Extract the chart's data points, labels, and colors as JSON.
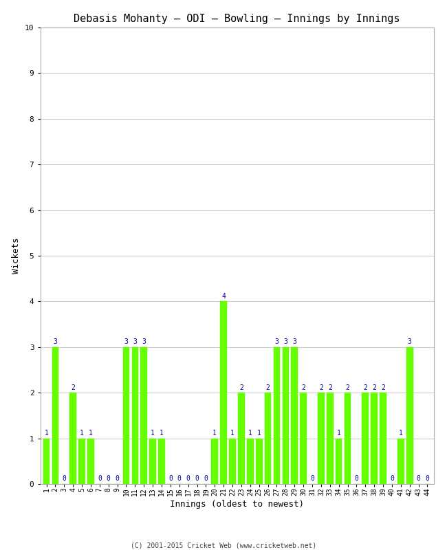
{
  "title": "Debasis Mohanty – ODI – Bowling – Innings by Innings",
  "xlabel": "Innings (oldest to newest)",
  "ylabel": "Wickets",
  "innings": [
    1,
    2,
    3,
    4,
    5,
    6,
    7,
    8,
    9,
    10,
    11,
    12,
    13,
    14,
    15,
    16,
    17,
    18,
    19,
    20,
    21,
    22,
    23,
    24,
    25,
    26,
    27,
    28,
    29,
    30,
    31,
    32,
    33,
    34,
    35,
    36,
    37,
    38,
    39,
    40,
    41,
    42,
    43,
    44
  ],
  "wickets": [
    1,
    3,
    0,
    2,
    1,
    1,
    0,
    0,
    0,
    3,
    3,
    3,
    1,
    1,
    0,
    0,
    0,
    0,
    0,
    1,
    4,
    1,
    2,
    1,
    1,
    2,
    3,
    3,
    3,
    2,
    0,
    2,
    2,
    1,
    2,
    0,
    2,
    2,
    2,
    0,
    1,
    3,
    0,
    0
  ],
  "bar_color": "#66ff00",
  "bar_edge_color": "#55ee00",
  "label_color": "#000099",
  "background_color": "#ffffff",
  "grid_color": "#cccccc",
  "ylim": [
    0,
    10
  ],
  "yticks": [
    0,
    1,
    2,
    3,
    4,
    5,
    6,
    7,
    8,
    9,
    10
  ],
  "title_fontsize": 11,
  "axis_label_fontsize": 9,
  "tick_fontsize": 7,
  "bar_label_fontsize": 7,
  "footer_text": "(C) 2001-2015 Cricket Web (www.cricketweb.net)"
}
